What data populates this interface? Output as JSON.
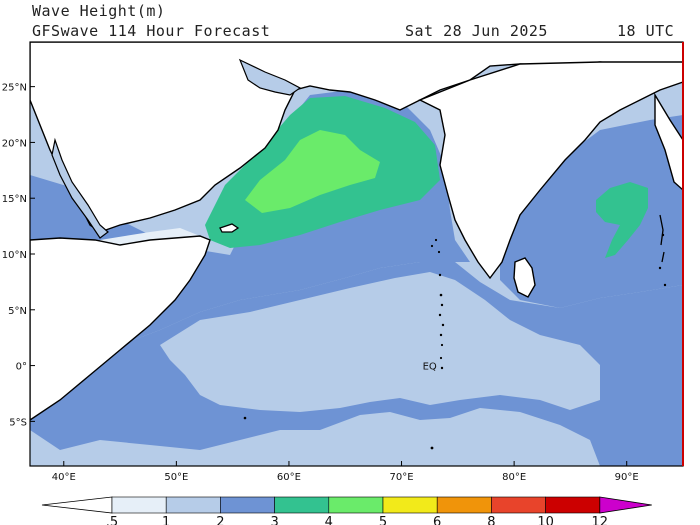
{
  "title": "Wave Height(m)",
  "subtitle": "GFSwave 114 Hour Forecast",
  "date": "Sat 28 Jun 2025",
  "time": "18 UTC",
  "map": {
    "lon_range": [
      37,
      95
    ],
    "lat_range": [
      -9,
      29
    ],
    "lon_ticks": [
      "40°E",
      "50°E",
      "60°E",
      "70°E",
      "80°E",
      "90°E"
    ],
    "lon_values": [
      40,
      50,
      60,
      70,
      80,
      90
    ],
    "lat_ticks": [
      "25°N",
      "20°N",
      "15°N",
      "10°N",
      "5°N",
      "0°",
      "5°S"
    ],
    "lat_values": [
      25,
      20,
      15,
      10,
      5,
      0,
      -5
    ],
    "equator_label": "EQ",
    "grid": false
  },
  "colorbar": {
    "levels": [
      ".5",
      "1",
      "2",
      "3",
      "4",
      "5",
      "6",
      "8",
      "10",
      "12"
    ],
    "colors": [
      "#e6eff8",
      "#b6cce8",
      "#6e93d4",
      "#33c290",
      "#6aeb6a",
      "#f2ea1a",
      "#f0940a",
      "#e8442b",
      "#cc0000",
      "#cc00cc"
    ]
  },
  "colors": {
    "land": "#ffffff",
    "coast": "#000000"
  }
}
